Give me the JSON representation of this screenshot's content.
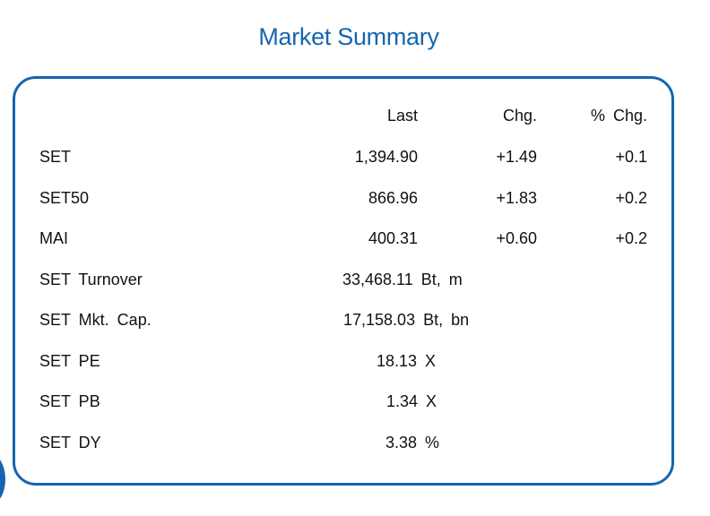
{
  "title": "Market Summary",
  "colors": {
    "accent": "#1466b0"
  },
  "headers": {
    "last": "Last",
    "chg": "Chg.",
    "pct_chg": "% Chg."
  },
  "indices": [
    {
      "name": "SET",
      "last": "1,394.90",
      "chg": "+1.49",
      "pct_chg": "+0.1"
    },
    {
      "name": "SET50",
      "last": "866.96",
      "chg": "+1.83",
      "pct_chg": "+0.2"
    },
    {
      "name": "MAI",
      "last": "400.31",
      "chg": "+0.60",
      "pct_chg": "+0.2"
    }
  ],
  "stats": [
    {
      "name": "SET Turnover",
      "value": "33,468.11 Bt, m"
    },
    {
      "name": "SET Mkt. Cap.",
      "value": "17,158.03 Bt, bn"
    },
    {
      "name": "SET PE",
      "value": "18.13 X"
    },
    {
      "name": "SET PB",
      "value": "1.34 X"
    },
    {
      "name": "SET DY",
      "value": "3.38 %"
    }
  ]
}
